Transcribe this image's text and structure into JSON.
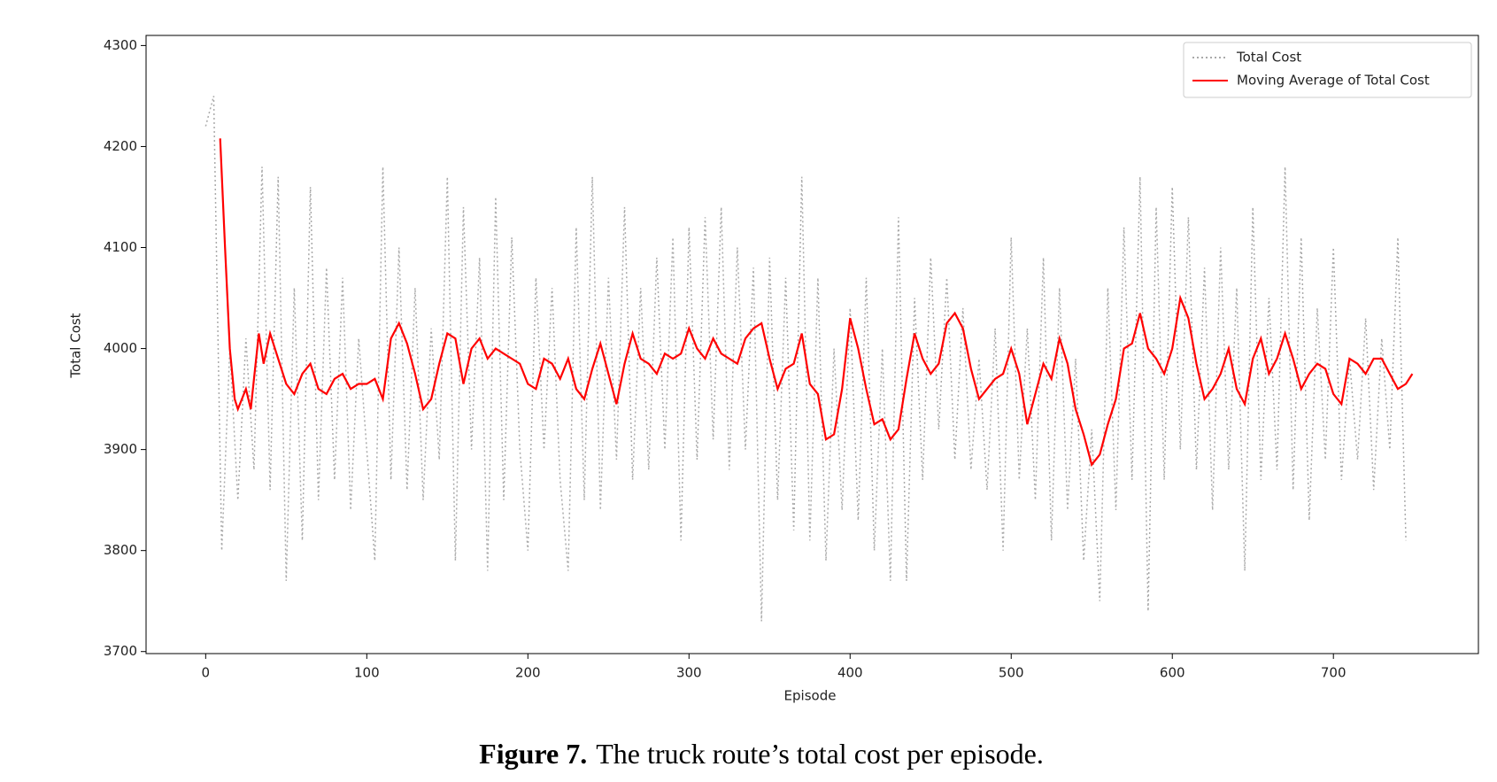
{
  "chart_data": {
    "type": "line",
    "x_label": "Episode",
    "y_label": "Total Cost",
    "xlim": [
      -37,
      790
    ],
    "ylim": [
      3698,
      4310
    ],
    "xticks": [
      0,
      100,
      200,
      300,
      400,
      500,
      600,
      700
    ],
    "yticks": [
      3700,
      3800,
      3900,
      4000,
      4100,
      4200,
      4300
    ],
    "legend": "upper right",
    "series": [
      {
        "name": "Total Cost",
        "color": "#aaaaaa",
        "style": "dotted",
        "x": [
          0,
          5,
          10,
          15,
          20,
          25,
          30,
          35,
          40,
          45,
          50,
          55,
          60,
          65,
          70,
          75,
          80,
          85,
          90,
          95,
          100,
          105,
          110,
          115,
          120,
          125,
          130,
          135,
          140,
          145,
          150,
          155,
          160,
          165,
          170,
          175,
          180,
          185,
          190,
          195,
          200,
          205,
          210,
          215,
          220,
          225,
          230,
          235,
          240,
          245,
          250,
          255,
          260,
          265,
          270,
          275,
          280,
          285,
          290,
          295,
          300,
          305,
          310,
          315,
          320,
          325,
          330,
          335,
          340,
          345,
          350,
          355,
          360,
          365,
          370,
          375,
          380,
          385,
          390,
          395,
          400,
          405,
          410,
          415,
          420,
          425,
          430,
          435,
          440,
          445,
          450,
          455,
          460,
          465,
          470,
          475,
          480,
          485,
          490,
          495,
          500,
          505,
          510,
          515,
          520,
          525,
          530,
          535,
          540,
          545,
          550,
          555,
          560,
          565,
          570,
          575,
          580,
          585,
          590,
          595,
          600,
          605,
          610,
          615,
          620,
          625,
          630,
          635,
          640,
          645,
          650,
          655,
          660,
          665,
          670,
          675,
          680,
          685,
          690,
          695,
          700,
          705,
          710,
          715,
          720,
          725,
          730,
          735,
          740,
          745
        ],
        "values": [
          4220,
          4250,
          3800,
          4000,
          3850,
          4010,
          3880,
          4180,
          3860,
          4170,
          3770,
          4060,
          3810,
          4160,
          3850,
          4080,
          3870,
          4070,
          3840,
          4010,
          3900,
          3790,
          4180,
          3870,
          4100,
          3860,
          4060,
          3850,
          4020,
          3890,
          4170,
          3790,
          4140,
          3900,
          4090,
          3780,
          4150,
          3850,
          4110,
          3900,
          3800,
          4070,
          3900,
          4060,
          3870,
          3780,
          4120,
          3850,
          4170,
          3840,
          4070,
          3890,
          4140,
          3870,
          4060,
          3880,
          4090,
          3900,
          4110,
          3810,
          4120,
          3890,
          4130,
          3910,
          4140,
          3880,
          4100,
          3900,
          4080,
          3730,
          4090,
          3850,
          4070,
          3820,
          4170,
          3810,
          4070,
          3790,
          4000,
          3840,
          4040,
          3830,
          4070,
          3800,
          4000,
          3770,
          4130,
          3770,
          4050,
          3870,
          4090,
          3920,
          4070,
          3890,
          4040,
          3880,
          3990,
          3860,
          4020,
          3800,
          4110,
          3870,
          4020,
          3850,
          4090,
          3810,
          4060,
          3840,
          3990,
          3790,
          3920,
          3750,
          4060,
          3840,
          4120,
          3870,
          4170,
          3740,
          4140,
          3870,
          4160,
          3900,
          4130,
          3880,
          4080,
          3840,
          4100,
          3880,
          4060,
          3780,
          4140,
          3870,
          4050,
          3880,
          4180,
          3860,
          4110,
          3830,
          4040,
          3890,
          4100,
          3870,
          3990,
          3890,
          4030,
          3860,
          4010,
          3900,
          4110,
          3810
        ]
      },
      {
        "name": "Moving Average of Total Cost",
        "color": "#ff0000",
        "style": "solid",
        "x": [
          9,
          12,
          15,
          18,
          20,
          25,
          28,
          30,
          33,
          36,
          40,
          45,
          50,
          55,
          60,
          65,
          70,
          75,
          80,
          85,
          90,
          95,
          100,
          105,
          110,
          115,
          120,
          125,
          130,
          135,
          140,
          145,
          150,
          155,
          160,
          165,
          170,
          175,
          180,
          185,
          190,
          195,
          200,
          205,
          210,
          215,
          220,
          225,
          230,
          235,
          240,
          245,
          250,
          255,
          260,
          265,
          270,
          275,
          280,
          285,
          290,
          295,
          300,
          305,
          310,
          315,
          320,
          325,
          330,
          335,
          340,
          345,
          350,
          355,
          360,
          365,
          370,
          375,
          380,
          385,
          390,
          395,
          400,
          405,
          410,
          415,
          420,
          425,
          430,
          435,
          440,
          445,
          450,
          455,
          460,
          465,
          470,
          475,
          480,
          485,
          490,
          495,
          500,
          505,
          510,
          515,
          520,
          525,
          530,
          535,
          540,
          545,
          550,
          555,
          560,
          565,
          570,
          575,
          580,
          585,
          590,
          595,
          600,
          605,
          610,
          615,
          620,
          625,
          630,
          635,
          640,
          645,
          650,
          655,
          660,
          665,
          670,
          675,
          680,
          685,
          690,
          695,
          700,
          705,
          710,
          715,
          720,
          725,
          730,
          735,
          740,
          745,
          749
        ],
        "values": [
          4208,
          4100,
          4000,
          3950,
          3940,
          3960,
          3940,
          3970,
          4015,
          3985,
          4015,
          3990,
          3965,
          3955,
          3975,
          3985,
          3960,
          3955,
          3970,
          3975,
          3960,
          3965,
          3965,
          3970,
          3950,
          4010,
          4025,
          4005,
          3975,
          3940,
          3950,
          3985,
          4015,
          4010,
          3965,
          4000,
          4010,
          3990,
          4000,
          3995,
          3990,
          3985,
          3965,
          3960,
          3990,
          3985,
          3970,
          3990,
          3960,
          3950,
          3980,
          4005,
          3975,
          3945,
          3985,
          4015,
          3990,
          3985,
          3975,
          3995,
          3990,
          3995,
          4020,
          4000,
          3990,
          4010,
          3995,
          3990,
          3985,
          4010,
          4020,
          4025,
          3990,
          3960,
          3980,
          3985,
          4015,
          3965,
          3955,
          3910,
          3915,
          3960,
          4030,
          4000,
          3960,
          3925,
          3930,
          3910,
          3920,
          3970,
          4015,
          3990,
          3975,
          3985,
          4025,
          4035,
          4020,
          3980,
          3950,
          3960,
          3970,
          3975,
          4000,
          3975,
          3925,
          3955,
          3985,
          3970,
          4010,
          3985,
          3940,
          3915,
          3885,
          3895,
          3925,
          3950,
          4000,
          4005,
          4035,
          4000,
          3990,
          3975,
          4000,
          4050,
          4030,
          3985,
          3950,
          3960,
          3975,
          4000,
          3960,
          3945,
          3990,
          4010,
          3975,
          3990,
          4015,
          3990,
          3960,
          3975,
          3985,
          3980,
          3955,
          3945,
          3990,
          3985,
          3975,
          3990,
          3990,
          3975,
          3960,
          3965,
          3975
        ]
      }
    ],
    "caption": {
      "label": "Figure 7.",
      "text": "The truck route’s total cost per episode."
    }
  }
}
